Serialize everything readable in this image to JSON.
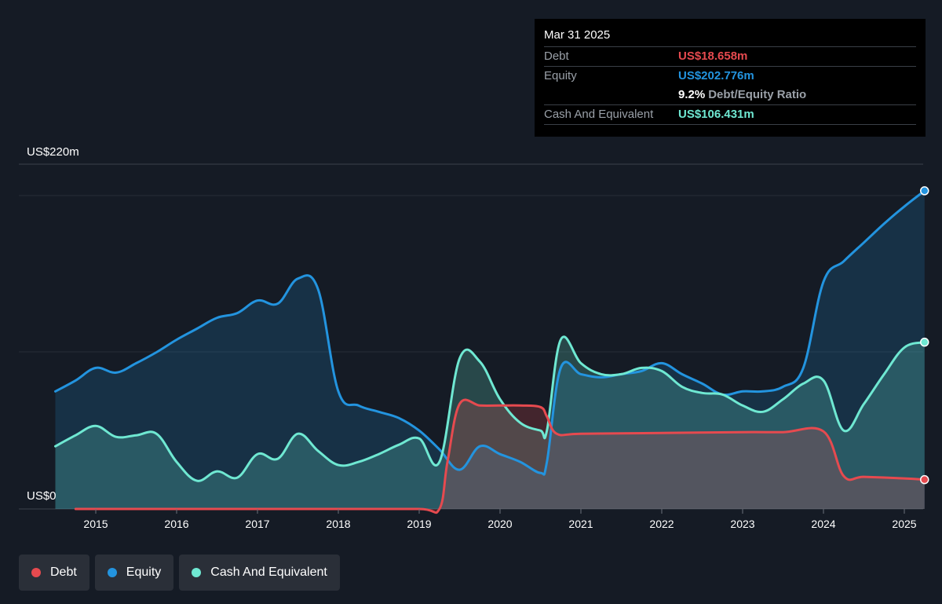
{
  "tooltip": {
    "date": "Mar 31 2025",
    "debt_label": "Debt",
    "debt_value": "US$18.658m",
    "equity_label": "Equity",
    "equity_value": "US$202.776m",
    "ratio_pct": "9.2%",
    "ratio_label": "Debt/Equity Ratio",
    "cash_label": "Cash And Equivalent",
    "cash_value": "US$106.431m"
  },
  "legend": {
    "debt": "Debt",
    "equity": "Equity",
    "cash": "Cash And Equivalent"
  },
  "colors": {
    "debt": "#e64a4f",
    "equity": "#2394df",
    "cash": "#6fe8d2",
    "background": "#151b25"
  },
  "chart_data": {
    "type": "area",
    "ylabel_top": "US$220m",
    "ylabel_bottom": "US$0",
    "ylim": [
      0,
      220
    ],
    "xlim": [
      2014.5,
      2025.25
    ],
    "x_ticks": [
      "2015",
      "2016",
      "2017",
      "2018",
      "2019",
      "2020",
      "2021",
      "2022",
      "2023",
      "2024",
      "2025"
    ],
    "grid": true,
    "legend_position": "bottom-left",
    "series": [
      {
        "name": "Debt",
        "x": [
          2014.75,
          2015.0,
          2016.0,
          2017.0,
          2018.0,
          2019.0,
          2019.25,
          2019.35,
          2019.5,
          2019.75,
          2020.0,
          2020.25,
          2020.5,
          2020.58,
          2020.7,
          2021.0,
          2022.0,
          2023.0,
          2023.5,
          2024.0,
          2024.25,
          2024.5,
          2025.0,
          2025.25
        ],
        "values": [
          0,
          0,
          0,
          0,
          0,
          0,
          0,
          30,
          67,
          66,
          66,
          66,
          65,
          59,
          48,
          48,
          48.5,
          49,
          49,
          49.5,
          21,
          20.5,
          19.5,
          18.7
        ]
      },
      {
        "name": "Equity",
        "x": [
          2014.5,
          2014.75,
          2015.0,
          2015.25,
          2015.5,
          2015.75,
          2016.0,
          2016.25,
          2016.5,
          2016.75,
          2017.0,
          2017.25,
          2017.5,
          2017.75,
          2018.0,
          2018.25,
          2018.5,
          2018.75,
          2019.0,
          2019.25,
          2019.5,
          2019.75,
          2020.0,
          2020.25,
          2020.5,
          2020.58,
          2020.75,
          2021.0,
          2021.25,
          2021.5,
          2021.75,
          2022.0,
          2022.25,
          2022.5,
          2022.75,
          2023.0,
          2023.25,
          2023.5,
          2023.75,
          2024.0,
          2024.25,
          2024.5,
          2024.75,
          2025.0,
          2025.25
        ],
        "values": [
          75,
          82,
          90,
          87,
          93,
          100,
          108,
          115,
          122,
          125,
          133,
          131,
          147,
          140,
          75,
          66,
          62,
          58,
          50,
          38,
          25,
          40,
          35,
          30,
          23,
          30,
          90,
          86,
          84,
          86,
          88,
          93,
          86,
          80,
          73,
          75,
          75,
          78,
          90,
          145,
          158,
          170,
          182,
          193,
          203
        ]
      },
      {
        "name": "Cash And Equivalent",
        "x": [
          2014.5,
          2014.75,
          2015.0,
          2015.25,
          2015.5,
          2015.75,
          2016.0,
          2016.25,
          2016.5,
          2016.75,
          2017.0,
          2017.25,
          2017.5,
          2017.75,
          2018.0,
          2018.25,
          2018.5,
          2018.75,
          2019.0,
          2019.25,
          2019.5,
          2019.75,
          2020.0,
          2020.25,
          2020.5,
          2020.58,
          2020.75,
          2021.0,
          2021.25,
          2021.5,
          2021.75,
          2022.0,
          2022.25,
          2022.5,
          2022.75,
          2023.0,
          2023.25,
          2023.5,
          2023.75,
          2024.0,
          2024.25,
          2024.5,
          2024.75,
          2025.0,
          2025.25
        ],
        "values": [
          40,
          47,
          53,
          46,
          47,
          48,
          30,
          18,
          24,
          20,
          35,
          32,
          48,
          37,
          28,
          30,
          35,
          41,
          45,
          30,
          96,
          94,
          70,
          55,
          50,
          50,
          108,
          93,
          86,
          86,
          90,
          88,
          78,
          74,
          73,
          66,
          62,
          70,
          80,
          82,
          50,
          67,
          86,
          103,
          106.4
        ]
      }
    ]
  }
}
